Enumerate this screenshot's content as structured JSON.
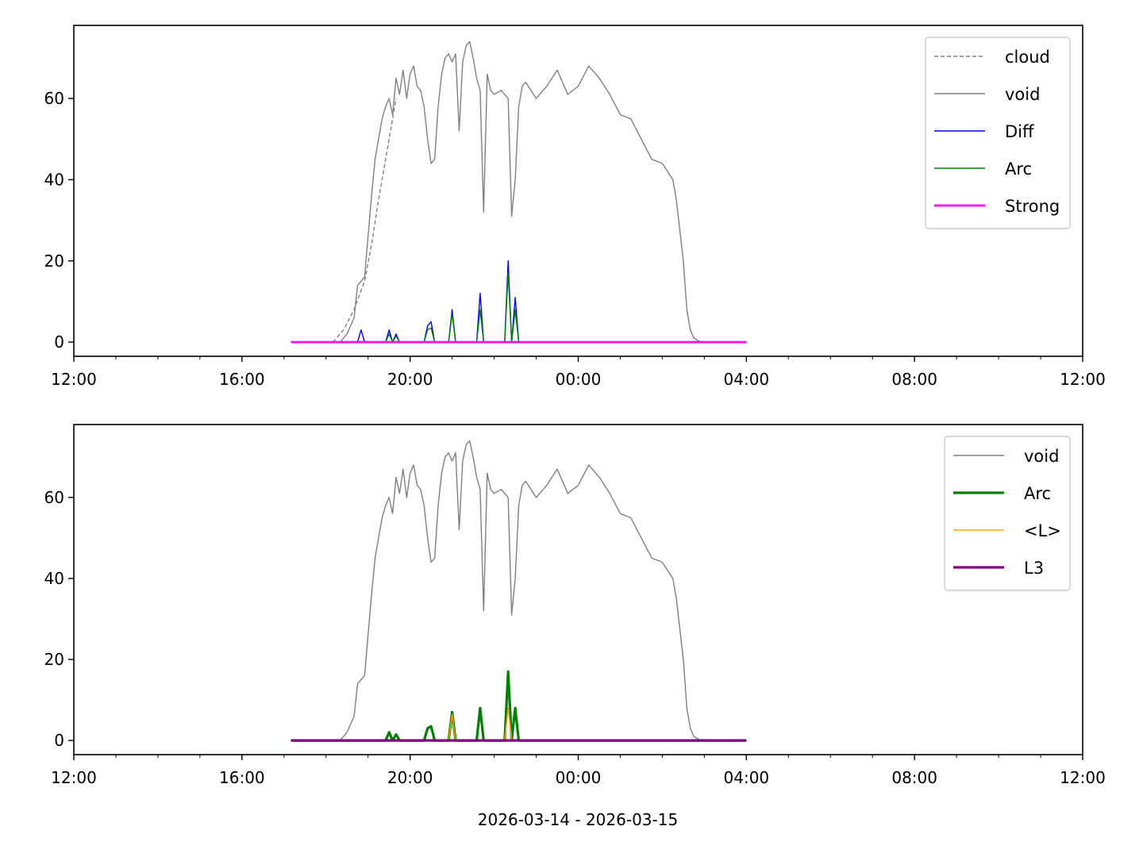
{
  "figure": {
    "xlabel": "2026-03-14 - 2026-03-15"
  },
  "chart_data": [
    {
      "type": "line",
      "title": "",
      "xlabel": "",
      "ylabel": "",
      "x_tick_labels": [
        "12:00",
        "16:00",
        "20:00",
        "00:00",
        "04:00",
        "08:00",
        "12:00"
      ],
      "x_ticks": [
        "2026-03-14 12:00",
        "2026-03-14 16:00",
        "2026-03-14 20:00",
        "2026-03-15 00:00",
        "2026-03-15 04:00",
        "2026-03-15 08:00",
        "2026-03-15 12:00"
      ],
      "xlim": [
        "2026-03-14 12:00",
        "2026-03-15 12:00"
      ],
      "y_ticks": [
        0,
        20,
        40,
        60
      ],
      "ylim": [
        -3.5,
        78
      ],
      "grid": false,
      "legend_position": "top-right",
      "series": [
        {
          "name": "cloud",
          "color": "#808080",
          "style": "dashed",
          "width": 1.4,
          "x": [
            "2026-03-14 18:10",
            "2026-03-14 18:25",
            "2026-03-14 18:40",
            "2026-03-14 18:55",
            "2026-03-14 19:05",
            "2026-03-14 19:15",
            "2026-03-14 19:25",
            "2026-03-14 19:35",
            "2026-03-14 19:40"
          ],
          "y": [
            0,
            3,
            8,
            15,
            24,
            35,
            45,
            55,
            60
          ]
        },
        {
          "name": "void",
          "color": "#808080",
          "style": "solid",
          "width": 1.4,
          "x": [
            "2026-03-14 18:00",
            "2026-03-14 18:20",
            "2026-03-14 18:30",
            "2026-03-14 18:40",
            "2026-03-14 18:45",
            "2026-03-14 18:55",
            "2026-03-14 19:00",
            "2026-03-14 19:05",
            "2026-03-14 19:10",
            "2026-03-14 19:15",
            "2026-03-14 19:20",
            "2026-03-14 19:25",
            "2026-03-14 19:30",
            "2026-03-14 19:35",
            "2026-03-14 19:40",
            "2026-03-14 19:45",
            "2026-03-14 19:50",
            "2026-03-14 19:55",
            "2026-03-14 20:00",
            "2026-03-14 20:05",
            "2026-03-14 20:10",
            "2026-03-14 20:15",
            "2026-03-14 20:20",
            "2026-03-14 20:25",
            "2026-03-14 20:30",
            "2026-03-14 20:35",
            "2026-03-14 20:40",
            "2026-03-14 20:45",
            "2026-03-14 20:50",
            "2026-03-14 20:55",
            "2026-03-14 21:00",
            "2026-03-14 21:05",
            "2026-03-14 21:10",
            "2026-03-14 21:15",
            "2026-03-14 21:20",
            "2026-03-14 21:25",
            "2026-03-14 21:30",
            "2026-03-14 21:35",
            "2026-03-14 21:40",
            "2026-03-14 21:45",
            "2026-03-14 21:50",
            "2026-03-14 21:55",
            "2026-03-14 22:00",
            "2026-03-14 22:10",
            "2026-03-14 22:20",
            "2026-03-14 22:25",
            "2026-03-14 22:30",
            "2026-03-14 22:35",
            "2026-03-14 22:40",
            "2026-03-14 22:45",
            "2026-03-14 23:00",
            "2026-03-14 23:15",
            "2026-03-14 23:30",
            "2026-03-14 23:45",
            "2026-03-15 00:00",
            "2026-03-15 00:15",
            "2026-03-15 00:30",
            "2026-03-15 00:45",
            "2026-03-15 01:00",
            "2026-03-15 01:15",
            "2026-03-15 01:30",
            "2026-03-15 01:45",
            "2026-03-15 02:00",
            "2026-03-15 02:15",
            "2026-03-15 02:20",
            "2026-03-15 02:30",
            "2026-03-15 02:35",
            "2026-03-15 02:40",
            "2026-03-15 02:45",
            "2026-03-15 02:50",
            "2026-03-15 02:55",
            "2026-03-15 03:00",
            "2026-03-15 03:10",
            "2026-03-15 03:20",
            "2026-03-15 03:30",
            "2026-03-15 04:00"
          ],
          "y": [
            0,
            0,
            2,
            6,
            14,
            16,
            26,
            36,
            45,
            50,
            55,
            58,
            60,
            56,
            65,
            61,
            67,
            60,
            66,
            68,
            63,
            62,
            58,
            50,
            44,
            45,
            58,
            66,
            70,
            71,
            69,
            71,
            52,
            69,
            73,
            74,
            70,
            65,
            62,
            32,
            66,
            62,
            61,
            62,
            60,
            31,
            40,
            58,
            63,
            64,
            60,
            63,
            67,
            61,
            63,
            68,
            65,
            61,
            56,
            55,
            50,
            45,
            44,
            40,
            35,
            20,
            8,
            3,
            1,
            0.5,
            0,
            0,
            0,
            0,
            0,
            0
          ]
        },
        {
          "name": "Diff",
          "color": "#0000ff",
          "style": "solid",
          "width": 1.4,
          "x": [
            "2026-03-14 17:10",
            "2026-03-14 18:45",
            "2026-03-14 18:50",
            "2026-03-14 18:55",
            "2026-03-14 19:25",
            "2026-03-14 19:30",
            "2026-03-14 19:35",
            "2026-03-14 19:40",
            "2026-03-14 19:45",
            "2026-03-14 20:20",
            "2026-03-14 20:25",
            "2026-03-14 20:30",
            "2026-03-14 20:35",
            "2026-03-14 20:55",
            "2026-03-14 21:00",
            "2026-03-14 21:05",
            "2026-03-14 21:35",
            "2026-03-14 21:40",
            "2026-03-14 21:45",
            "2026-03-14 22:15",
            "2026-03-14 22:20",
            "2026-03-14 22:25",
            "2026-03-14 22:30",
            "2026-03-14 22:35",
            "2026-03-15 04:00"
          ],
          "y": [
            0,
            0,
            3,
            0,
            0,
            3,
            0,
            2,
            0,
            0,
            4,
            5,
            0,
            0,
            8,
            0,
            0,
            12,
            0,
            0,
            20,
            0,
            11,
            0,
            0
          ]
        },
        {
          "name": "Arc",
          "color": "#008000",
          "style": "solid",
          "width": 1.4,
          "x": [
            "2026-03-14 17:10",
            "2026-03-14 19:25",
            "2026-03-14 19:30",
            "2026-03-14 19:35",
            "2026-03-14 19:40",
            "2026-03-14 19:45",
            "2026-03-14 20:20",
            "2026-03-14 20:25",
            "2026-03-14 20:30",
            "2026-03-14 20:35",
            "2026-03-14 20:55",
            "2026-03-14 21:00",
            "2026-03-14 21:05",
            "2026-03-14 21:35",
            "2026-03-14 21:40",
            "2026-03-14 21:45",
            "2026-03-14 22:15",
            "2026-03-14 22:20",
            "2026-03-14 22:25",
            "2026-03-14 22:30",
            "2026-03-14 22:35",
            "2026-03-15 04:00"
          ],
          "y": [
            0,
            0,
            2,
            0,
            1.5,
            0,
            0,
            3,
            3.5,
            0,
            0,
            7,
            0,
            0,
            8,
            0,
            0,
            17,
            0,
            8,
            0,
            0
          ]
        },
        {
          "name": "Strong",
          "color": "#ff00ff",
          "style": "solid",
          "width": 2.8,
          "x": [
            "2026-03-14 17:10",
            "2026-03-15 04:00"
          ],
          "y": [
            0,
            0
          ]
        }
      ]
    },
    {
      "type": "line",
      "title": "",
      "xlabel": "",
      "ylabel": "",
      "x_tick_labels": [
        "12:00",
        "16:00",
        "20:00",
        "00:00",
        "04:00",
        "08:00",
        "12:00"
      ],
      "x_ticks": [
        "2026-03-14 12:00",
        "2026-03-14 16:00",
        "2026-03-14 20:00",
        "2026-03-15 00:00",
        "2026-03-15 04:00",
        "2026-03-15 08:00",
        "2026-03-15 12:00"
      ],
      "xlim": [
        "2026-03-14 12:00",
        "2026-03-15 12:00"
      ],
      "y_ticks": [
        0,
        20,
        40,
        60
      ],
      "ylim": [
        -3.5,
        78
      ],
      "grid": false,
      "legend_position": "top-right",
      "series": [
        {
          "name": "void",
          "color": "#808080",
          "style": "solid",
          "width": 1.4,
          "x": [
            "2026-03-14 18:00",
            "2026-03-14 18:20",
            "2026-03-14 18:30",
            "2026-03-14 18:40",
            "2026-03-14 18:45",
            "2026-03-14 18:55",
            "2026-03-14 19:00",
            "2026-03-14 19:05",
            "2026-03-14 19:10",
            "2026-03-14 19:15",
            "2026-03-14 19:20",
            "2026-03-14 19:25",
            "2026-03-14 19:30",
            "2026-03-14 19:35",
            "2026-03-14 19:40",
            "2026-03-14 19:45",
            "2026-03-14 19:50",
            "2026-03-14 19:55",
            "2026-03-14 20:00",
            "2026-03-14 20:05",
            "2026-03-14 20:10",
            "2026-03-14 20:15",
            "2026-03-14 20:20",
            "2026-03-14 20:25",
            "2026-03-14 20:30",
            "2026-03-14 20:35",
            "2026-03-14 20:40",
            "2026-03-14 20:45",
            "2026-03-14 20:50",
            "2026-03-14 20:55",
            "2026-03-14 21:00",
            "2026-03-14 21:05",
            "2026-03-14 21:10",
            "2026-03-14 21:15",
            "2026-03-14 21:20",
            "2026-03-14 21:25",
            "2026-03-14 21:30",
            "2026-03-14 21:35",
            "2026-03-14 21:40",
            "2026-03-14 21:45",
            "2026-03-14 21:50",
            "2026-03-14 21:55",
            "2026-03-14 22:00",
            "2026-03-14 22:10",
            "2026-03-14 22:20",
            "2026-03-14 22:25",
            "2026-03-14 22:30",
            "2026-03-14 22:35",
            "2026-03-14 22:40",
            "2026-03-14 22:45",
            "2026-03-14 23:00",
            "2026-03-14 23:15",
            "2026-03-14 23:30",
            "2026-03-14 23:45",
            "2026-03-15 00:00",
            "2026-03-15 00:15",
            "2026-03-15 00:30",
            "2026-03-15 00:45",
            "2026-03-15 01:00",
            "2026-03-15 01:15",
            "2026-03-15 01:30",
            "2026-03-15 01:45",
            "2026-03-15 02:00",
            "2026-03-15 02:15",
            "2026-03-15 02:20",
            "2026-03-15 02:30",
            "2026-03-15 02:35",
            "2026-03-15 02:40",
            "2026-03-15 02:45",
            "2026-03-15 02:50",
            "2026-03-15 02:55",
            "2026-03-15 03:00",
            "2026-03-15 03:10",
            "2026-03-15 03:20",
            "2026-03-15 03:30",
            "2026-03-15 04:00"
          ],
          "y": [
            0,
            0,
            2,
            6,
            14,
            16,
            26,
            36,
            45,
            50,
            55,
            58,
            60,
            56,
            65,
            61,
            67,
            60,
            66,
            68,
            63,
            62,
            58,
            50,
            44,
            45,
            58,
            66,
            70,
            71,
            69,
            71,
            52,
            69,
            73,
            74,
            70,
            65,
            62,
            32,
            66,
            62,
            61,
            62,
            60,
            31,
            40,
            58,
            63,
            64,
            60,
            63,
            67,
            61,
            63,
            68,
            65,
            61,
            56,
            55,
            50,
            45,
            44,
            40,
            35,
            20,
            8,
            3,
            1,
            0.5,
            0,
            0,
            0,
            0,
            0,
            0
          ]
        },
        {
          "name": "Arc",
          "color": "#008000",
          "style": "solid",
          "width": 3.2,
          "x": [
            "2026-03-14 17:10",
            "2026-03-14 19:25",
            "2026-03-14 19:30",
            "2026-03-14 19:35",
            "2026-03-14 19:40",
            "2026-03-14 19:45",
            "2026-03-14 20:20",
            "2026-03-14 20:25",
            "2026-03-14 20:30",
            "2026-03-14 20:35",
            "2026-03-14 20:55",
            "2026-03-14 21:00",
            "2026-03-14 21:05",
            "2026-03-14 21:35",
            "2026-03-14 21:40",
            "2026-03-14 21:45",
            "2026-03-14 22:15",
            "2026-03-14 22:20",
            "2026-03-14 22:25",
            "2026-03-14 22:30",
            "2026-03-14 22:35",
            "2026-03-15 04:00"
          ],
          "y": [
            0,
            0,
            2,
            0,
            1.5,
            0,
            0,
            3,
            3.5,
            0,
            0,
            7,
            0,
            0,
            8,
            0,
            0,
            17,
            0,
            8,
            0,
            0
          ]
        },
        {
          "name": "<L>",
          "color": "#ffa500",
          "style": "solid",
          "width": 1.4,
          "x": [
            "2026-03-14 17:10",
            "2026-03-14 20:55",
            "2026-03-14 21:00",
            "2026-03-14 21:05",
            "2026-03-14 22:15",
            "2026-03-14 22:20",
            "2026-03-14 22:25",
            "2026-03-15 04:00"
          ],
          "y": [
            0,
            0,
            6.5,
            0,
            0,
            8,
            0,
            0
          ]
        },
        {
          "name": "L3",
          "color": "#800080",
          "style": "solid",
          "width": 3.2,
          "x": [
            "2026-03-14 17:10",
            "2026-03-15 04:00"
          ],
          "y": [
            0,
            0
          ]
        }
      ]
    }
  ]
}
